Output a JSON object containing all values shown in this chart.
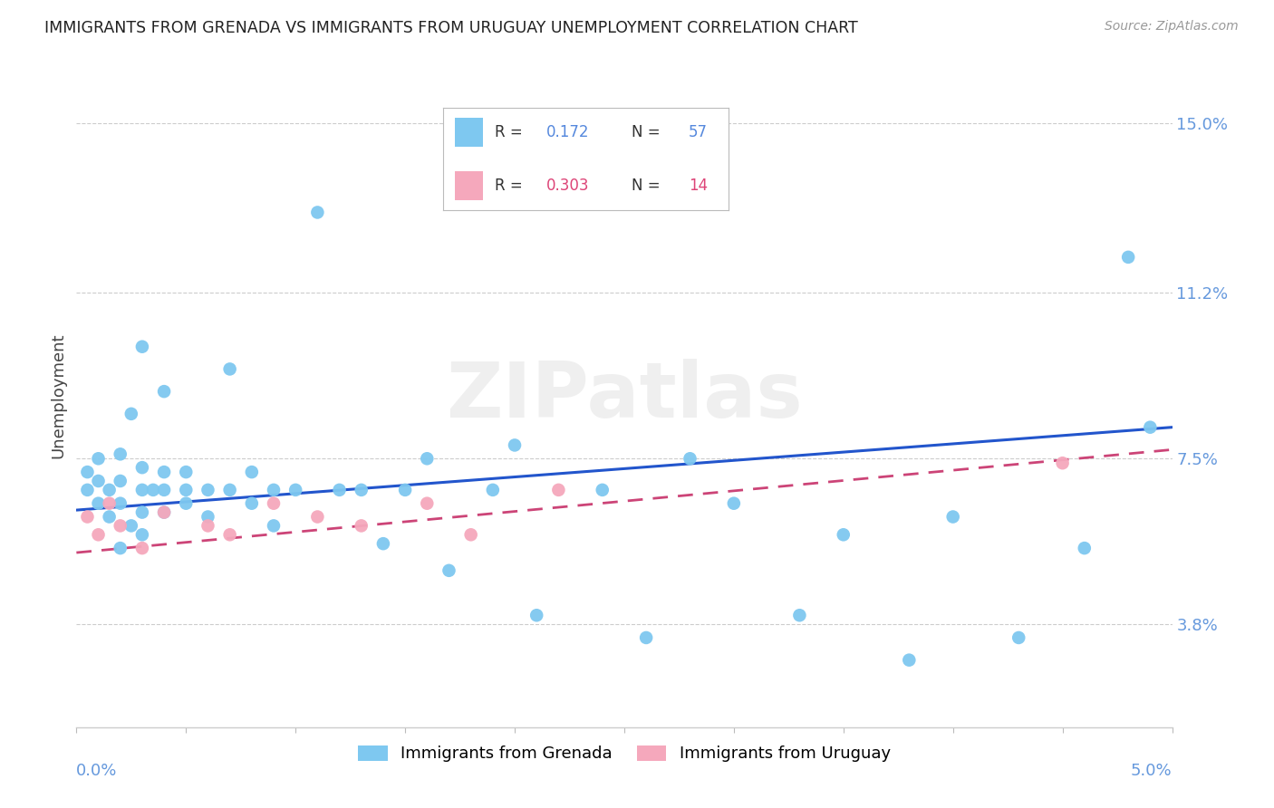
{
  "title": "IMMIGRANTS FROM GRENADA VS IMMIGRANTS FROM URUGUAY UNEMPLOYMENT CORRELATION CHART",
  "source": "Source: ZipAtlas.com",
  "ylabel": "Unemployment",
  "yticks": [
    0.038,
    0.075,
    0.112,
    0.15
  ],
  "ytick_labels": [
    "3.8%",
    "7.5%",
    "11.2%",
    "15.0%"
  ],
  "xmin": 0.0,
  "xmax": 0.05,
  "ymin": 0.015,
  "ymax": 0.163,
  "color_grenada": "#7EC8F0",
  "color_uruguay": "#F5A8BC",
  "color_line_grenada": "#2255CC",
  "color_line_uruguay": "#CC4477",
  "watermark_text": "ZIPatlas",
  "grenada_trend_x": [
    0.0,
    0.05
  ],
  "grenada_trend_y": [
    0.0635,
    0.082
  ],
  "uruguay_trend_x": [
    0.0,
    0.05
  ],
  "uruguay_trend_y": [
    0.054,
    0.077
  ],
  "grenada_x": [
    0.0005,
    0.0005,
    0.001,
    0.001,
    0.001,
    0.0015,
    0.0015,
    0.002,
    0.002,
    0.002,
    0.002,
    0.0025,
    0.0025,
    0.003,
    0.003,
    0.003,
    0.003,
    0.003,
    0.0035,
    0.004,
    0.004,
    0.004,
    0.004,
    0.005,
    0.005,
    0.005,
    0.006,
    0.006,
    0.007,
    0.007,
    0.008,
    0.008,
    0.009,
    0.009,
    0.01,
    0.011,
    0.012,
    0.013,
    0.014,
    0.015,
    0.016,
    0.017,
    0.019,
    0.02,
    0.021,
    0.024,
    0.026,
    0.028,
    0.03,
    0.033,
    0.035,
    0.038,
    0.04,
    0.043,
    0.046,
    0.048,
    0.049
  ],
  "grenada_y": [
    0.068,
    0.072,
    0.065,
    0.07,
    0.075,
    0.062,
    0.068,
    0.055,
    0.065,
    0.07,
    0.076,
    0.06,
    0.085,
    0.058,
    0.063,
    0.068,
    0.073,
    0.1,
    0.068,
    0.063,
    0.068,
    0.072,
    0.09,
    0.065,
    0.068,
    0.072,
    0.062,
    0.068,
    0.068,
    0.095,
    0.065,
    0.072,
    0.06,
    0.068,
    0.068,
    0.13,
    0.068,
    0.068,
    0.056,
    0.068,
    0.075,
    0.05,
    0.068,
    0.078,
    0.04,
    0.068,
    0.035,
    0.075,
    0.065,
    0.04,
    0.058,
    0.03,
    0.062,
    0.035,
    0.055,
    0.12,
    0.082
  ],
  "uruguay_x": [
    0.0005,
    0.001,
    0.0015,
    0.002,
    0.003,
    0.004,
    0.006,
    0.007,
    0.009,
    0.011,
    0.013,
    0.016,
    0.018,
    0.022,
    0.045
  ],
  "uruguay_y": [
    0.062,
    0.058,
    0.065,
    0.06,
    0.055,
    0.063,
    0.06,
    0.058,
    0.065,
    0.062,
    0.06,
    0.065,
    0.058,
    0.068,
    0.074
  ]
}
